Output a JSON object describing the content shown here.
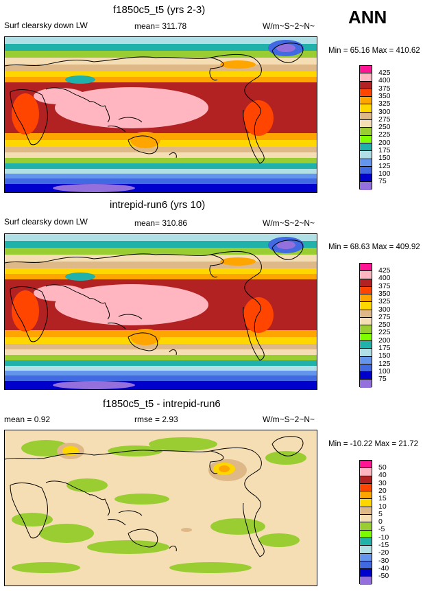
{
  "season_label": "ANN",
  "colors": {
    "abs_scale": [
      "#9370db",
      "#0000cd",
      "#4169e1",
      "#6495ed",
      "#b0e0e6",
      "#20b2aa",
      "#7fff00",
      "#9acd32",
      "#f5deb3",
      "#deb887",
      "#ffd700",
      "#ffa500",
      "#ff4500",
      "#b22222",
      "#ffb6c1",
      "#ff1493"
    ],
    "diff_scale": [
      "#9370db",
      "#0000cd",
      "#4169e1",
      "#6495ed",
      "#b0e0e6",
      "#20b2aa",
      "#7cfc00",
      "#9acd32",
      "#f5deb3",
      "#deb887",
      "#ffd700",
      "#ffa500",
      "#ff4500",
      "#b22222",
      "#ffb6c1",
      "#ff1493"
    ]
  },
  "panels": [
    {
      "title": "f1850c5_t5 (yrs 2-3)",
      "left_label": "Surf clearsky down LW",
      "center_label": "mean= 311.78",
      "units": "W/m~S~2~N~",
      "minmax": "Min =  65.16 Max = 410.62"
    },
    {
      "title": "intrepid-run6 (yrs 10)",
      "left_label": "Surf clearsky down LW",
      "center_label": "mean= 310.86",
      "units": "W/m~S~2~N~",
      "minmax": "Min =  68.63 Max = 409.92"
    },
    {
      "title": "f1850c5_t5 - intrepid-run6",
      "left_label": "mean =   0.92",
      "center_label": "rmse =   2.93",
      "units": "W/m~S~2~N~",
      "minmax": "Min = -10.22 Max =  21.72"
    }
  ],
  "chart_data": [
    {
      "type": "heatmap",
      "title": "f1850c5_t5 (yrs 2-3)",
      "variable": "Surf clearsky down LW",
      "mean": 311.78,
      "units": "W/m~S~2~N~",
      "min": 65.16,
      "max": 410.62,
      "contour_levels": [
        75,
        100,
        125,
        150,
        175,
        200,
        225,
        250,
        275,
        300,
        325,
        350,
        375,
        400,
        425
      ],
      "zonal_bands": [
        {
          "lat": 75,
          "value": 170
        },
        {
          "lat": 60,
          "value": 230
        },
        {
          "lat": 45,
          "value": 270
        },
        {
          "lat": 30,
          "value": 330
        },
        {
          "lat": 15,
          "value": 385
        },
        {
          "lat": 0,
          "value": 405
        },
        {
          "lat": -15,
          "value": 385
        },
        {
          "lat": -30,
          "value": 330
        },
        {
          "lat": -45,
          "value": 280
        },
        {
          "lat": -60,
          "value": 220
        },
        {
          "lat": -75,
          "value": 90
        }
      ]
    },
    {
      "type": "heatmap",
      "title": "intrepid-run6 (yrs 10)",
      "variable": "Surf clearsky down LW",
      "mean": 310.86,
      "units": "W/m~S~2~N~",
      "min": 68.63,
      "max": 409.92,
      "contour_levels": [
        75,
        100,
        125,
        150,
        175,
        200,
        225,
        250,
        275,
        300,
        325,
        350,
        375,
        400,
        425
      ],
      "zonal_bands": [
        {
          "lat": 75,
          "value": 170
        },
        {
          "lat": 60,
          "value": 230
        },
        {
          "lat": 45,
          "value": 270
        },
        {
          "lat": 30,
          "value": 330
        },
        {
          "lat": 15,
          "value": 385
        },
        {
          "lat": 0,
          "value": 405
        },
        {
          "lat": -15,
          "value": 385
        },
        {
          "lat": -30,
          "value": 330
        },
        {
          "lat": -45,
          "value": 280
        },
        {
          "lat": -60,
          "value": 220
        },
        {
          "lat": -75,
          "value": 90
        }
      ]
    },
    {
      "type": "heatmap",
      "title": "f1850c5_t5 - intrepid-run6",
      "variable": "difference",
      "mean": 0.92,
      "rmse": 2.93,
      "units": "W/m~S~2~N~",
      "min": -10.22,
      "max": 21.72,
      "contour_levels": [
        -50,
        -40,
        -30,
        -20,
        -15,
        -10,
        -5,
        0,
        5,
        10,
        15,
        20,
        30,
        40,
        50
      ],
      "zonal_bands": [
        {
          "lat": 75,
          "value": 2
        },
        {
          "lat": 60,
          "value": 1
        },
        {
          "lat": 45,
          "value": 2
        },
        {
          "lat": 30,
          "value": 1
        },
        {
          "lat": 15,
          "value": -1
        },
        {
          "lat": 0,
          "value": 1
        },
        {
          "lat": -15,
          "value": 1
        },
        {
          "lat": -30,
          "value": -2
        },
        {
          "lat": -45,
          "value": 2
        },
        {
          "lat": -60,
          "value": -3
        },
        {
          "lat": -75,
          "value": 1
        }
      ]
    }
  ]
}
